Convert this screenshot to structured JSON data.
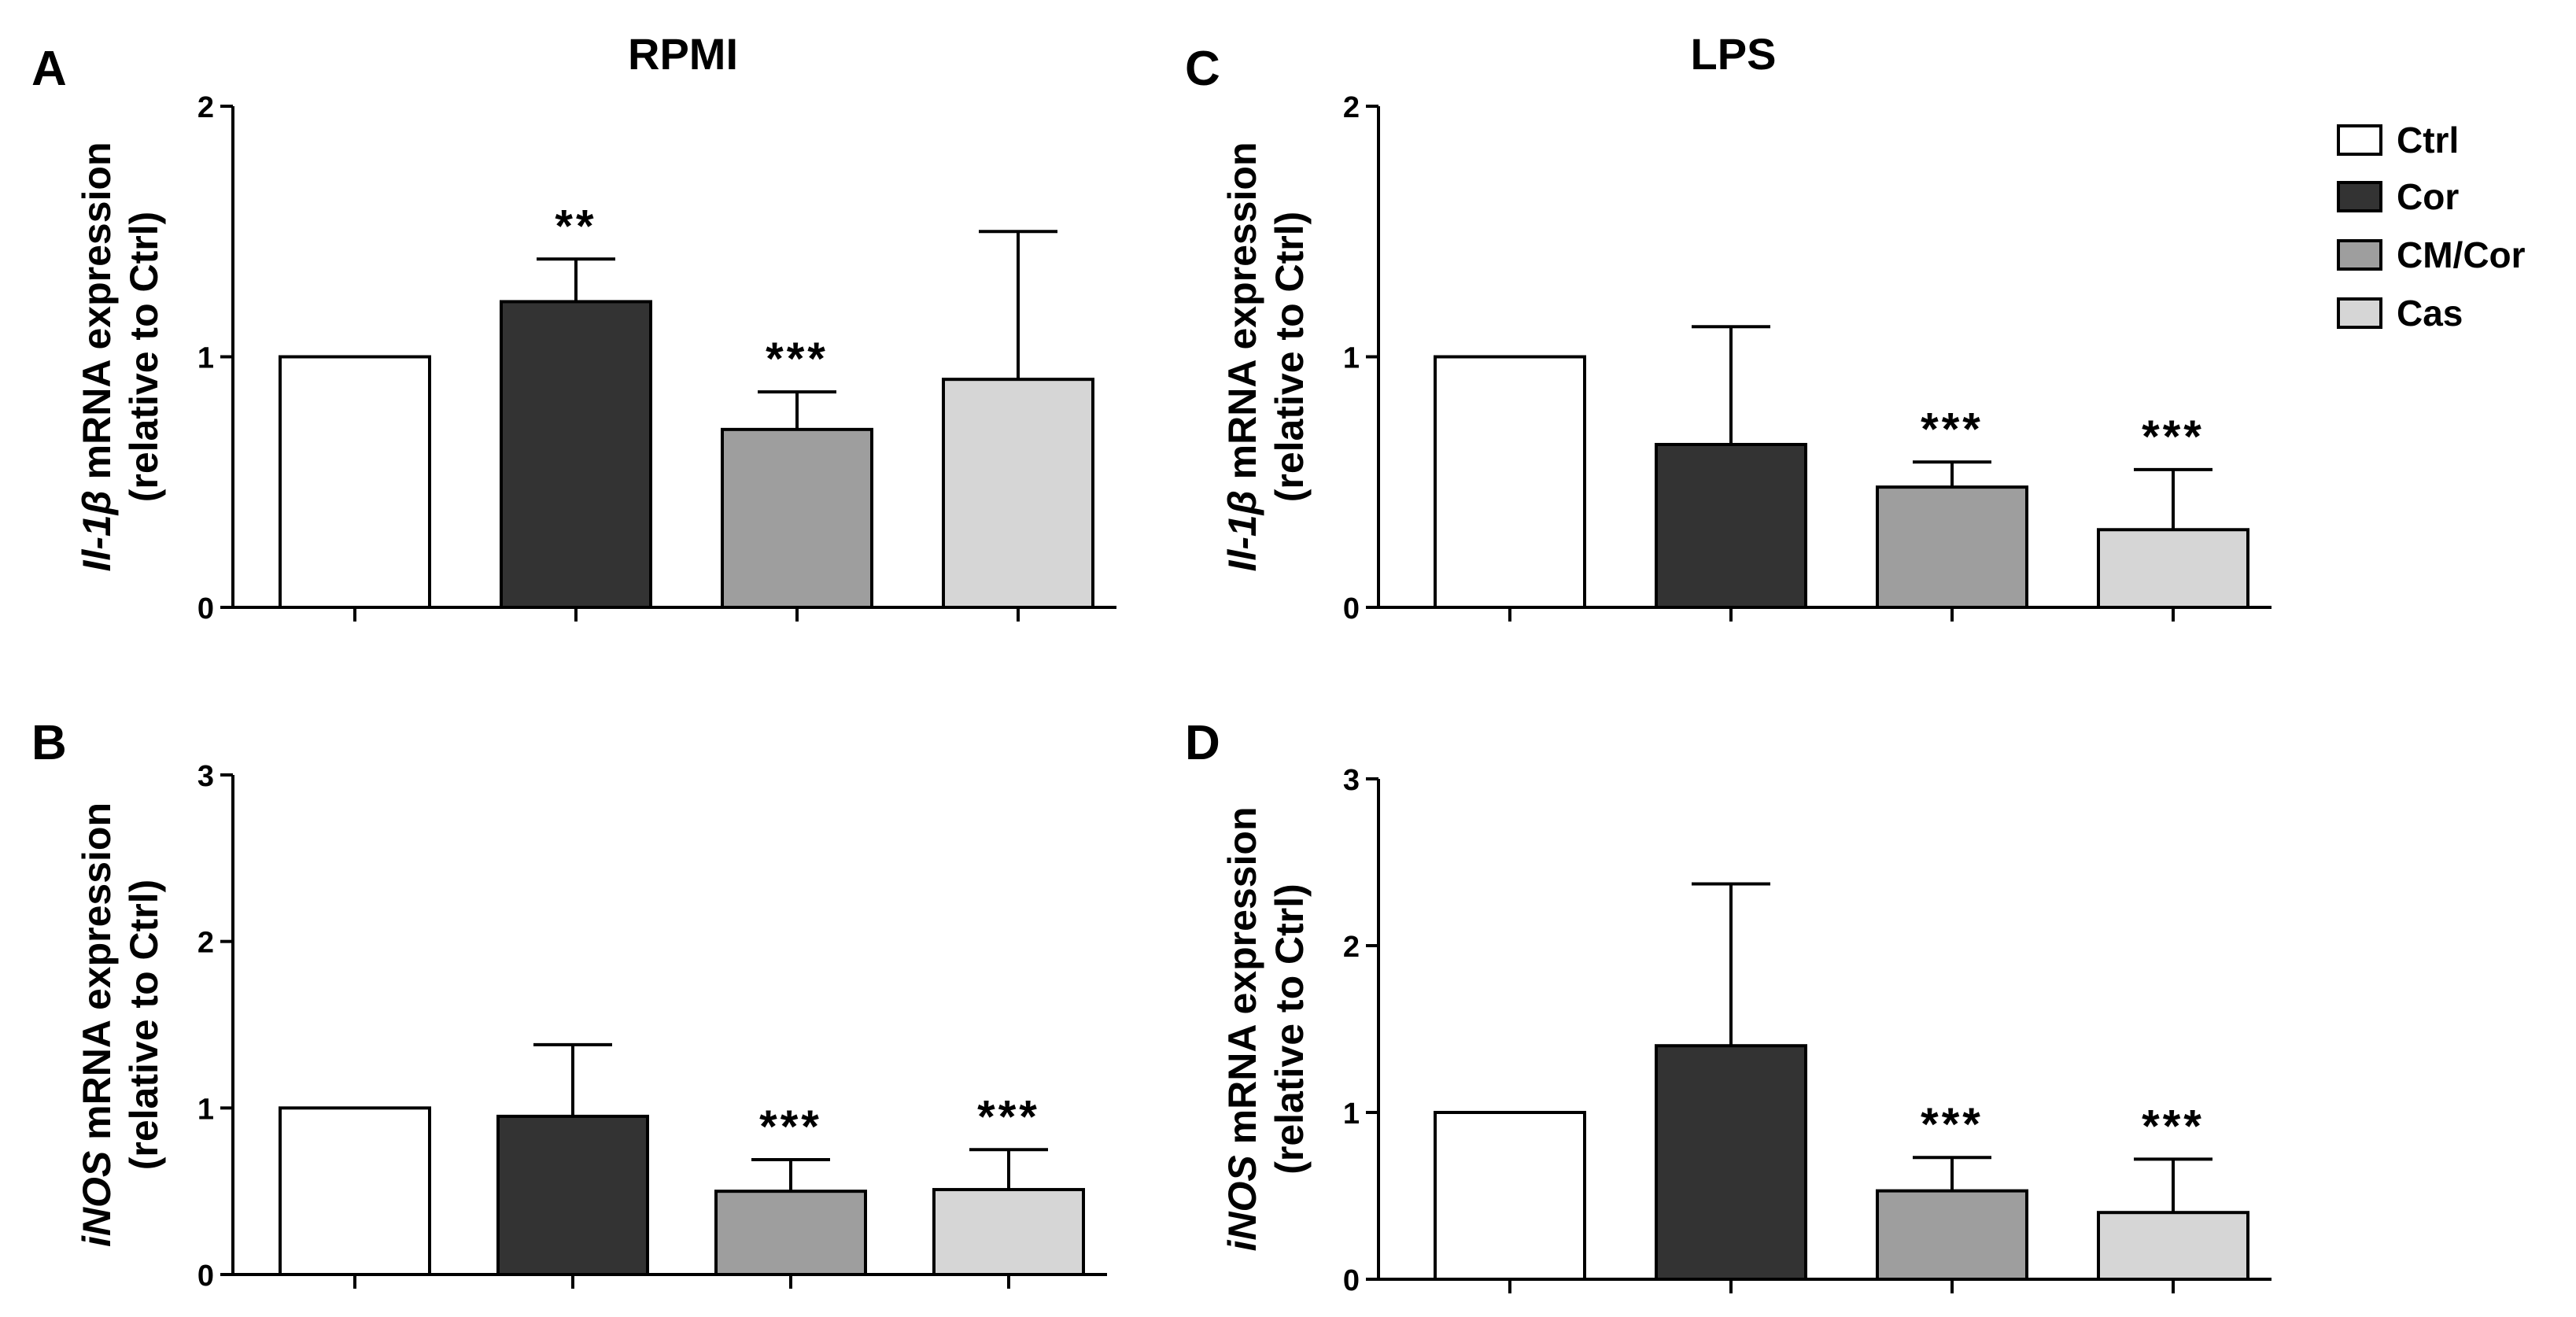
{
  "columns": [
    {
      "title": "RPMI"
    },
    {
      "title": "LPS"
    }
  ],
  "legend": [
    {
      "label": "Ctrl",
      "color": "#ffffff"
    },
    {
      "label": "Cor",
      "color": "#333333"
    },
    {
      "label": "CM/Cor",
      "color": "#9e9e9e"
    },
    {
      "label": "Cas",
      "color": "#d6d6d6"
    }
  ],
  "chart_data": [
    {
      "panel": "A",
      "type": "bar",
      "title": "RPMI",
      "categories": [
        "Ctrl",
        "Cor",
        "CM/Cor",
        "Cas"
      ],
      "values": [
        1.0,
        1.22,
        0.71,
        0.91
      ],
      "errors": [
        0,
        0.17,
        0.15,
        0.59
      ],
      "significance": [
        "",
        "**",
        "***",
        ""
      ],
      "ylabel_gene": "Il-1β",
      "ylabel_rest": " mRNA expression",
      "ylabel_line2": "(relative to Ctrl)",
      "ylim": [
        0,
        2
      ],
      "yticks": [
        "0",
        "1",
        "2"
      ]
    },
    {
      "panel": "B",
      "type": "bar",
      "title": "RPMI",
      "categories": [
        "Ctrl",
        "Cor",
        "CM/Cor",
        "Cas"
      ],
      "values": [
        1.0,
        0.95,
        0.5,
        0.51
      ],
      "errors": [
        0,
        0.43,
        0.19,
        0.24
      ],
      "significance": [
        "",
        "",
        "***",
        "***"
      ],
      "ylabel_gene": "iNOS",
      "ylabel_rest": " mRNA expression",
      "ylabel_line2": "(relative to Ctrl)",
      "ylim": [
        0,
        3
      ],
      "yticks": [
        "0",
        "1",
        "2",
        "3"
      ]
    },
    {
      "panel": "C",
      "type": "bar",
      "title": "LPS",
      "categories": [
        "Ctrl",
        "Cor",
        "CM/Cor",
        "Cas"
      ],
      "values": [
        1.0,
        0.65,
        0.48,
        0.31
      ],
      "errors": [
        0,
        0.47,
        0.1,
        0.24
      ],
      "significance": [
        "",
        "",
        "***",
        "***"
      ],
      "ylabel_gene": "Il-1β",
      "ylabel_rest": " mRNA expression",
      "ylabel_line2": "(relative to Ctrl)",
      "ylim": [
        0,
        2
      ],
      "yticks": [
        "0",
        "1",
        "2"
      ]
    },
    {
      "panel": "D",
      "type": "bar",
      "title": "LPS",
      "categories": [
        "Ctrl",
        "Cor",
        "CM/Cor",
        "Cas"
      ],
      "values": [
        1.0,
        1.4,
        0.53,
        0.4
      ],
      "errors": [
        0,
        0.97,
        0.2,
        0.32
      ],
      "significance": [
        "",
        "",
        "***",
        "***"
      ],
      "ylabel_gene": "iNOS",
      "ylabel_rest": " mRNA expression",
      "ylabel_line2": "(relative to Ctrl)",
      "ylim": [
        0,
        3
      ],
      "yticks": [
        "0",
        "1",
        "2",
        "3"
      ]
    }
  ]
}
